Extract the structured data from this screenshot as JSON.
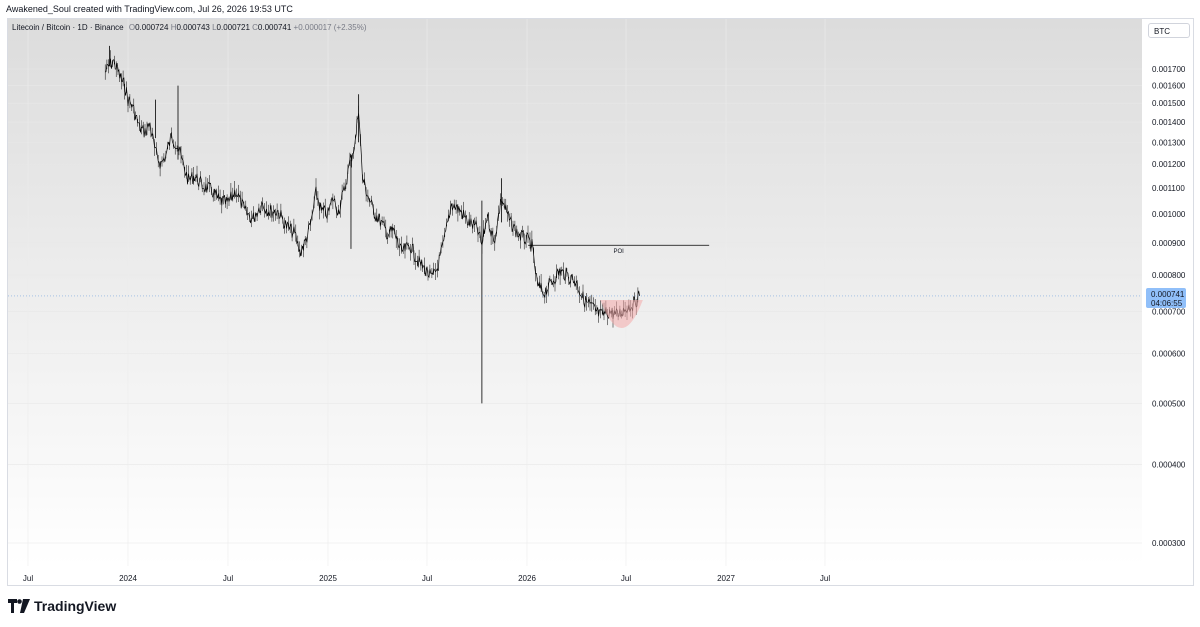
{
  "header": {
    "text": "Awakened_Soul created with TradingView.com, Jul 26, 2026 19:53 UTC"
  },
  "legend": {
    "symbol": "Litecoin / Bitcoin · 1D · Binance",
    "open_label": "O",
    "open": "0.000724",
    "high_label": "H",
    "high": "0.000743",
    "low_label": "L",
    "low": "0.000721",
    "close_label": "C",
    "close": "0.000741",
    "change": "+0.000017 (+2.35%)"
  },
  "currency_button": {
    "label": "BTC"
  },
  "price_tag": {
    "price": "0.000741",
    "countdown": "04:06:55"
  },
  "footer": {
    "logo_text": "TradingView"
  },
  "colors": {
    "candle": "#000000",
    "poi_line": "#000000",
    "highlight": "#f4a9a9",
    "price_tag": "#90bff9",
    "gradient_top": "#dadada",
    "gradient_bottom": "#ffffff"
  },
  "chart_data": {
    "type": "line",
    "title": "Litecoin / Bitcoin · 1D · Binance",
    "y_scale": "log",
    "ylim": [
      0.00027,
      0.00185
    ],
    "y_ticks": [
      "0.001700",
      "0.001600",
      "0.001500",
      "0.001400",
      "0.001300",
      "0.001200",
      "0.001100",
      "0.001000",
      "0.000900",
      "0.000800",
      "0.000700",
      "0.000600",
      "0.000500",
      "0.000400",
      "0.000300"
    ],
    "x_ticks": [
      "Jul",
      "2024",
      "Jul",
      "2025",
      "Jul",
      "2026",
      "Jul",
      "2027",
      "Jul"
    ],
    "x_tick_dates": [
      "2023-07-01",
      "2024-01-01",
      "2024-07-01",
      "2025-01-01",
      "2025-07-01",
      "2026-01-01",
      "2026-07-01",
      "2027-01-01",
      "2027-07-01"
    ],
    "series": [
      {
        "values_desc": "daily close path (approx)",
        "x": [
          "2023-11-20",
          "2023-11-28",
          "2023-12-05",
          "2023-12-12",
          "2023-12-20",
          "2023-12-26",
          "2024-01-01",
          "2024-01-08",
          "2024-01-15",
          "2024-01-22",
          "2024-02-01",
          "2024-02-10",
          "2024-02-20",
          "2024-03-01",
          "2024-03-10",
          "2024-03-20",
          "2024-04-01",
          "2024-04-10",
          "2024-04-20",
          "2024-05-01",
          "2024-05-15",
          "2024-06-01",
          "2024-06-15",
          "2024-07-01",
          "2024-07-15",
          "2024-08-01",
          "2024-08-15",
          "2024-09-01",
          "2024-09-15",
          "2024-10-01",
          "2024-10-15",
          "2024-11-01",
          "2024-11-10",
          "2024-11-20",
          "2024-12-01",
          "2024-12-10",
          "2024-12-20",
          "2025-01-01",
          "2025-01-10",
          "2025-01-20",
          "2025-02-01",
          "2025-02-10",
          "2025-02-20",
          "2025-02-26",
          "2025-03-05",
          "2025-03-15",
          "2025-03-25",
          "2025-04-05",
          "2025-04-20",
          "2025-05-01",
          "2025-05-15",
          "2025-06-01",
          "2025-06-15",
          "2025-07-01",
          "2025-07-10",
          "2025-07-20",
          "2025-08-01",
          "2025-08-15",
          "2025-09-01",
          "2025-09-15",
          "2025-10-01",
          "2025-10-10",
          "2025-10-20",
          "2025-11-01",
          "2025-11-15",
          "2025-12-01",
          "2025-12-15",
          "2026-01-01",
          "2026-01-10",
          "2026-01-20",
          "2026-02-01",
          "2026-02-15",
          "2026-03-01",
          "2026-03-15",
          "2026-04-01",
          "2026-04-15",
          "2026-05-01",
          "2026-05-15",
          "2026-06-01",
          "2026-06-15",
          "2026-07-01",
          "2026-07-15",
          "2026-07-26"
        ],
        "y": [
          0.00168,
          0.00172,
          0.00175,
          0.0017,
          0.00163,
          0.0016,
          0.00152,
          0.00149,
          0.00143,
          0.00137,
          0.00135,
          0.00139,
          0.00125,
          0.0012,
          0.00124,
          0.00133,
          0.00128,
          0.0012,
          0.00113,
          0.00115,
          0.00111,
          0.00109,
          0.00105,
          0.00104,
          0.00109,
          0.00101,
          0.00098,
          0.00104,
          0.00101,
          0.00101,
          0.00096,
          0.00093,
          0.00087,
          0.0009,
          0.00097,
          0.00108,
          0.00101,
          0.001,
          0.00106,
          0.00101,
          0.0011,
          0.00121,
          0.0013,
          0.00148,
          0.00114,
          0.00107,
          0.00101,
          0.00098,
          0.00093,
          0.00094,
          0.00087,
          0.00089,
          0.00084,
          0.00081,
          0.00079,
          0.00082,
          0.0009,
          0.00104,
          0.00101,
          0.00097,
          0.00095,
          0.00089,
          0.001,
          0.0009,
          0.00106,
          0.00097,
          0.00093,
          0.00091,
          0.00089,
          0.00077,
          0.00075,
          0.00078,
          0.00081,
          0.0008,
          0.00078,
          0.00073,
          0.00071,
          0.00069,
          0.0007,
          0.00069,
          0.00071,
          0.00072,
          0.000741
        ]
      }
    ],
    "wicks": [
      {
        "date": "2023-11-28",
        "high": 0.00185,
        "low": 0.00172
      },
      {
        "date": "2024-02-20",
        "high": 0.00152,
        "low": 0.00132
      },
      {
        "date": "2024-04-01",
        "high": 0.0016,
        "low": 0.00122
      },
      {
        "date": "2025-02-26",
        "high": 0.00155,
        "low": 0.0013
      },
      {
        "date": "2025-02-12",
        "high": 0.00122,
        "low": 0.00088
      },
      {
        "date": "2025-10-10",
        "high": 0.00105,
        "low": 0.0005
      },
      {
        "date": "2025-11-15",
        "high": 0.00114,
        "low": 0.00097
      }
    ],
    "annotations": [
      {
        "type": "hline",
        "label": "POI",
        "y": 0.000892,
        "x_start": "2026-01-03",
        "x_end": "2026-12-01"
      },
      {
        "type": "highlight-arc",
        "x_start": "2026-05-15",
        "x_end": "2026-08-01",
        "y_top": 0.00073,
        "y_bottom": 0.000665
      }
    ],
    "last_price": 0.000741,
    "grid": true,
    "legend": "top-left"
  }
}
